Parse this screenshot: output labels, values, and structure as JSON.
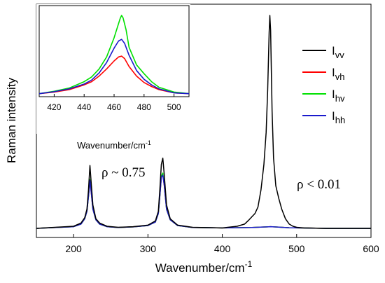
{
  "chart_data": [
    {
      "type": "line",
      "title": "",
      "xlabel": "Wavenumber/cm",
      "xlabel_sup": "-1",
      "ylabel": "Raman intensity",
      "xlim": [
        150,
        600
      ],
      "ylim": [
        0,
        1.0
      ],
      "xticks": [
        200,
        300,
        400,
        500,
        600
      ],
      "y_tick_labels": false,
      "grid": false,
      "legend_position": "right",
      "annotations": [
        {
          "text": "ρ ~ 0.75",
          "x": 266,
          "y": 0.26
        },
        {
          "text": "ρ < 0.01",
          "x": 458,
          "y": 0.21
        }
      ],
      "series": [
        {
          "name": "I",
          "sub": "vv",
          "color": "#000000",
          "x": [
            150,
            200,
            210,
            215,
            218,
            220,
            222,
            224,
            226,
            230,
            235,
            245,
            260,
            280,
            300,
            310,
            314,
            316,
            318,
            320,
            322,
            325,
            330,
            340,
            360,
            400,
            420,
            430,
            436,
            440,
            444,
            448,
            452,
            456,
            459,
            461,
            463,
            464,
            465,
            467,
            469,
            472,
            476,
            480,
            485,
            490,
            495,
            500,
            510,
            540,
            600
          ],
          "y": [
            0.0,
            0.01,
            0.025,
            0.05,
            0.09,
            0.18,
            0.295,
            0.2,
            0.11,
            0.045,
            0.025,
            0.01,
            0.005,
            0.008,
            0.015,
            0.035,
            0.08,
            0.18,
            0.3,
            0.33,
            0.25,
            0.11,
            0.045,
            0.015,
            0.005,
            0.002,
            0.01,
            0.02,
            0.04,
            0.055,
            0.07,
            0.1,
            0.18,
            0.3,
            0.45,
            0.65,
            0.92,
            1.0,
            0.93,
            0.55,
            0.33,
            0.2,
            0.14,
            0.09,
            0.045,
            0.02,
            0.01,
            0.005,
            0.002,
            0.0,
            0.0
          ]
        },
        {
          "name": "I",
          "sub": "vh",
          "color": "#ff0000",
          "x": [
            150,
            200,
            210,
            215,
            218,
            220,
            222,
            224,
            226,
            230,
            235,
            245,
            260,
            280,
            300,
            310,
            314,
            316,
            318,
            320,
            322,
            325,
            330,
            340,
            360,
            400,
            440,
            460,
            465,
            470,
            490,
            540,
            600
          ],
          "y": [
            0.0,
            0.008,
            0.02,
            0.045,
            0.08,
            0.15,
            0.225,
            0.16,
            0.09,
            0.04,
            0.02,
            0.008,
            0.004,
            0.007,
            0.013,
            0.03,
            0.07,
            0.15,
            0.24,
            0.255,
            0.2,
            0.09,
            0.04,
            0.013,
            0.004,
            0.002,
            0.004,
            0.007,
            0.008,
            0.007,
            0.003,
            0.0,
            0.0
          ]
        },
        {
          "name": "I",
          "sub": "hv",
          "color": "#00e000",
          "x": [
            150,
            200,
            210,
            215,
            218,
            220,
            222,
            224,
            226,
            230,
            235,
            245,
            260,
            280,
            300,
            310,
            314,
            316,
            318,
            320,
            322,
            325,
            330,
            340,
            360,
            400,
            440,
            460,
            465,
            470,
            490,
            540,
            600
          ],
          "y": [
            0.0,
            0.008,
            0.02,
            0.045,
            0.08,
            0.15,
            0.23,
            0.165,
            0.09,
            0.04,
            0.02,
            0.008,
            0.004,
            0.007,
            0.013,
            0.03,
            0.07,
            0.15,
            0.245,
            0.26,
            0.205,
            0.09,
            0.04,
            0.013,
            0.004,
            0.002,
            0.004,
            0.007,
            0.008,
            0.007,
            0.003,
            0.0,
            0.0
          ]
        },
        {
          "name": "I",
          "sub": "hh",
          "color": "#1a1acc",
          "x": [
            150,
            200,
            210,
            215,
            218,
            220,
            222,
            224,
            226,
            230,
            235,
            245,
            260,
            280,
            300,
            310,
            314,
            316,
            318,
            320,
            322,
            325,
            330,
            340,
            360,
            400,
            440,
            460,
            465,
            470,
            490,
            540,
            600
          ],
          "y": [
            0.0,
            0.008,
            0.02,
            0.045,
            0.08,
            0.15,
            0.225,
            0.16,
            0.09,
            0.04,
            0.02,
            0.008,
            0.004,
            0.007,
            0.013,
            0.03,
            0.07,
            0.15,
            0.24,
            0.25,
            0.2,
            0.09,
            0.04,
            0.013,
            0.004,
            0.002,
            0.004,
            0.007,
            0.008,
            0.007,
            0.003,
            0.0,
            0.0
          ]
        }
      ]
    },
    {
      "type": "line",
      "title": "",
      "xlabel": "Wavenumber/cm",
      "xlabel_sup": "-1",
      "ylabel": "",
      "xlim": [
        410,
        510
      ],
      "ylim": [
        0,
        1.0
      ],
      "xticks": [
        420,
        440,
        460,
        480,
        500
      ],
      "grid": false,
      "series": [
        {
          "name": "I",
          "sub": "vh",
          "color": "#ff0000",
          "x": [
            410,
            420,
            430,
            440,
            445,
            450,
            455,
            460,
            463,
            465,
            467,
            470,
            475,
            480,
            485,
            490,
            500,
            510
          ],
          "y": [
            0.02,
            0.04,
            0.07,
            0.13,
            0.17,
            0.24,
            0.33,
            0.43,
            0.48,
            0.49,
            0.46,
            0.36,
            0.24,
            0.16,
            0.11,
            0.07,
            0.03,
            0.02
          ]
        },
        {
          "name": "I",
          "sub": "hv",
          "color": "#00e000",
          "x": [
            410,
            420,
            430,
            440,
            445,
            450,
            455,
            460,
            462,
            464,
            465,
            466,
            468,
            470,
            475,
            480,
            485,
            490,
            500,
            510
          ],
          "y": [
            0.02,
            0.05,
            0.09,
            0.17,
            0.23,
            0.33,
            0.48,
            0.72,
            0.84,
            0.96,
            1.0,
            0.97,
            0.82,
            0.6,
            0.38,
            0.27,
            0.17,
            0.1,
            0.04,
            0.02
          ]
        },
        {
          "name": "I",
          "sub": "hh",
          "color": "#1a1acc",
          "x": [
            410,
            420,
            430,
            440,
            445,
            450,
            455,
            460,
            463,
            465,
            467,
            470,
            475,
            480,
            485,
            490,
            500,
            510
          ],
          "y": [
            0.02,
            0.045,
            0.08,
            0.14,
            0.19,
            0.28,
            0.41,
            0.59,
            0.68,
            0.7,
            0.65,
            0.5,
            0.31,
            0.2,
            0.13,
            0.08,
            0.03,
            0.02
          ]
        }
      ]
    }
  ]
}
